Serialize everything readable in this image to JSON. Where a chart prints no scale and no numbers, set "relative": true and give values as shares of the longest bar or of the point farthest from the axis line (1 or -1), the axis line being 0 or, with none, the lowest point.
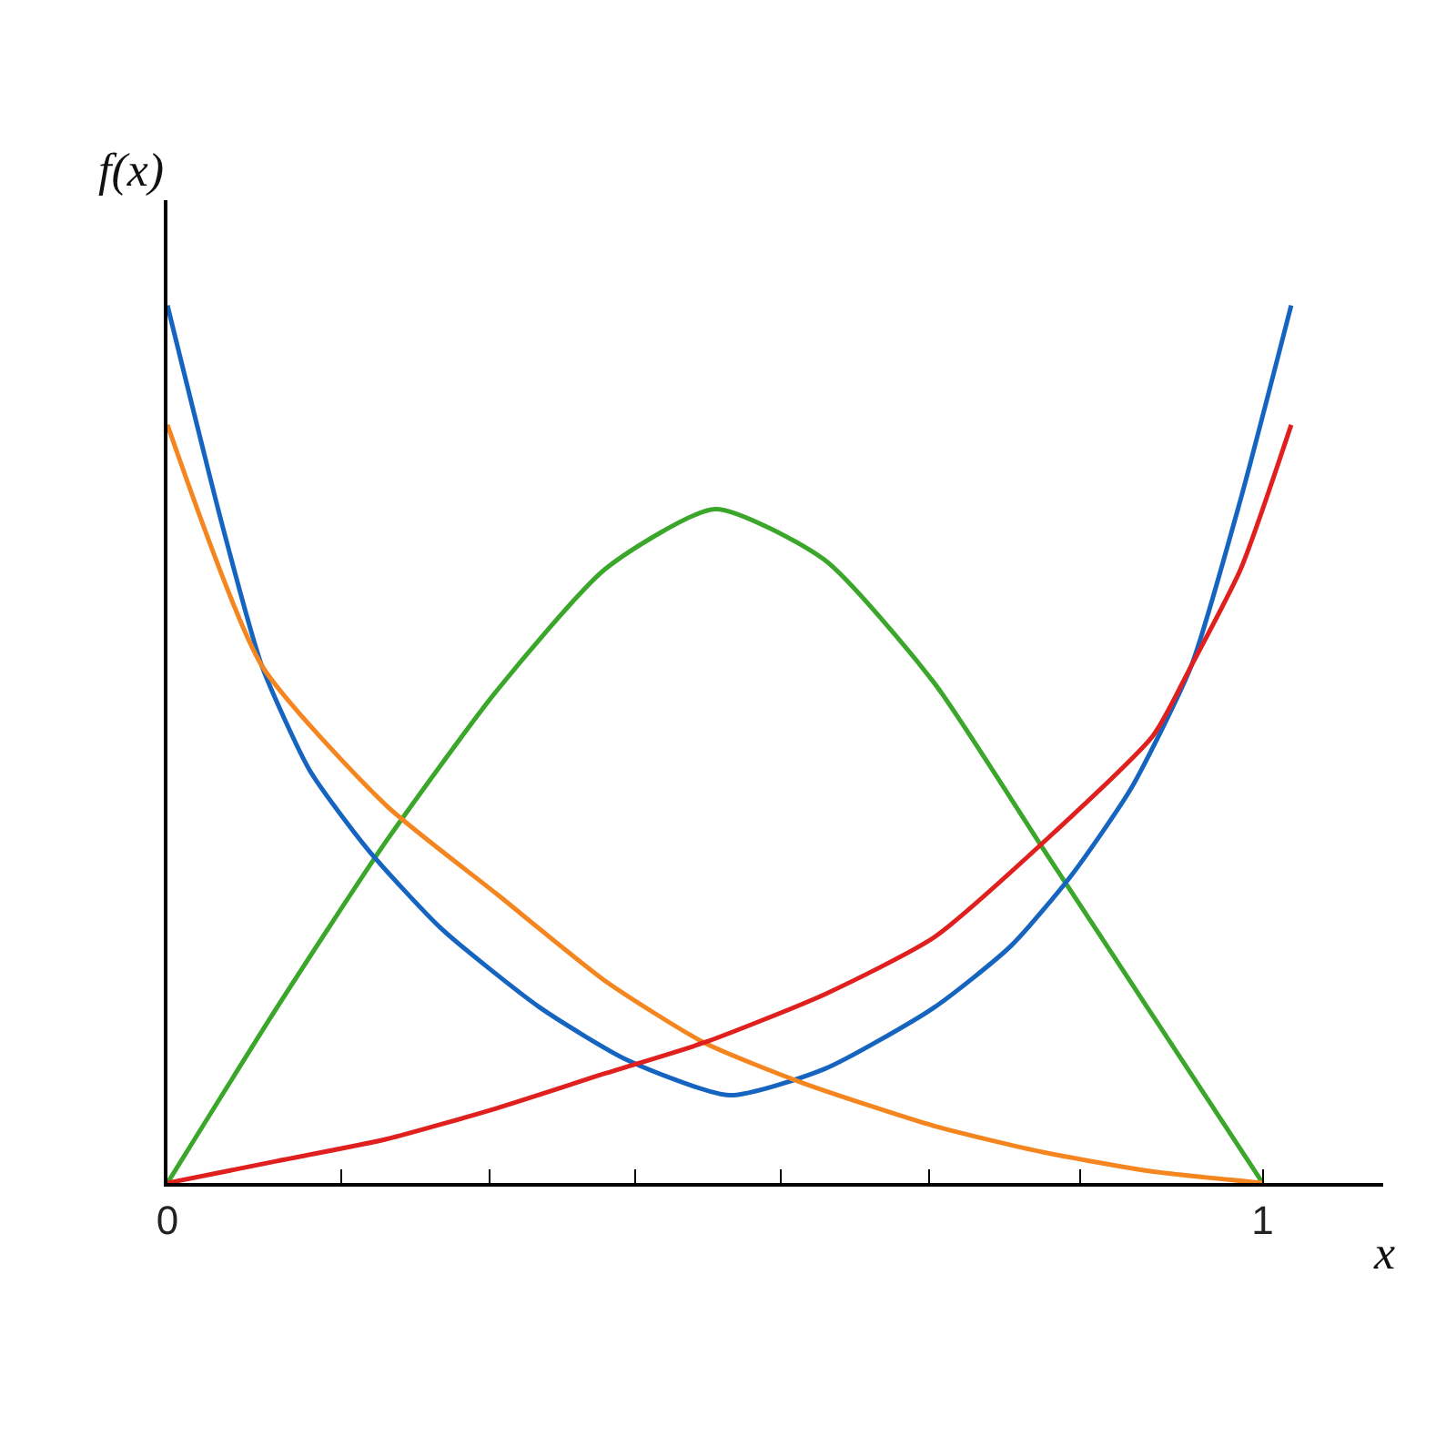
{
  "chart_data": {
    "type": "line",
    "relative": true,
    "xlabel": "x",
    "ylabel": "f(x)",
    "xlim": [
      0,
      1.11
    ],
    "xticks": [
      {
        "value": 0,
        "label": "0"
      },
      {
        "value": 0.159,
        "label": null
      },
      {
        "value": 0.294,
        "label": null
      },
      {
        "value": 0.427,
        "label": null
      },
      {
        "value": 0.56,
        "label": null
      },
      {
        "value": 0.695,
        "label": null
      },
      {
        "value": 0.833,
        "label": null
      },
      {
        "value": 1,
        "label": "1"
      }
    ],
    "tick_labels": "x",
    "marker": "none",
    "line_style": "solid",
    "series": [
      {
        "color": "#3aa62a",
        "x": [
          0,
          0.1,
          0.2,
          0.3,
          0.4,
          0.5,
          0.6,
          0.7,
          0.8,
          0.9,
          1
        ],
        "values": [
          0,
          0.2,
          0.39,
          0.56,
          0.7,
          0.768,
          0.71,
          0.57,
          0.38,
          0.19,
          0
        ]
      },
      {
        "color": "#1565c0",
        "x": [
          0,
          0.05,
          0.086,
          0.13,
          0.183,
          0.25,
          0.34,
          0.42,
          0.513,
          0.6,
          0.7,
          0.77,
          0.825,
          0.88,
          0.935,
          0.98,
          1.026
        ],
        "values": [
          1.0,
          0.75,
          0.59,
          0.47,
          0.38,
          0.29,
          0.2,
          0.14,
          0.1,
          0.13,
          0.2,
          0.27,
          0.35,
          0.45,
          0.59,
          0.78,
          1.0
        ]
      },
      {
        "color": "#f5861f",
        "x": [
          0,
          0.086,
          0.2,
          0.3,
          0.4,
          0.49,
          0.58,
          0.7,
          0.8,
          0.9,
          1
        ],
        "values": [
          0.864,
          0.59,
          0.43,
          0.33,
          0.23,
          0.16,
          0.114,
          0.065,
          0.035,
          0.013,
          0
        ]
      },
      {
        "color": "#e0201f",
        "x": [
          0,
          0.1,
          0.2,
          0.3,
          0.4,
          0.49,
          0.6,
          0.7,
          0.81,
          0.9,
          0.935,
          0.98,
          1.026
        ],
        "values": [
          0,
          0.025,
          0.05,
          0.085,
          0.125,
          0.16,
          0.215,
          0.28,
          0.4,
          0.51,
          0.59,
          0.7,
          0.864
        ]
      }
    ]
  }
}
